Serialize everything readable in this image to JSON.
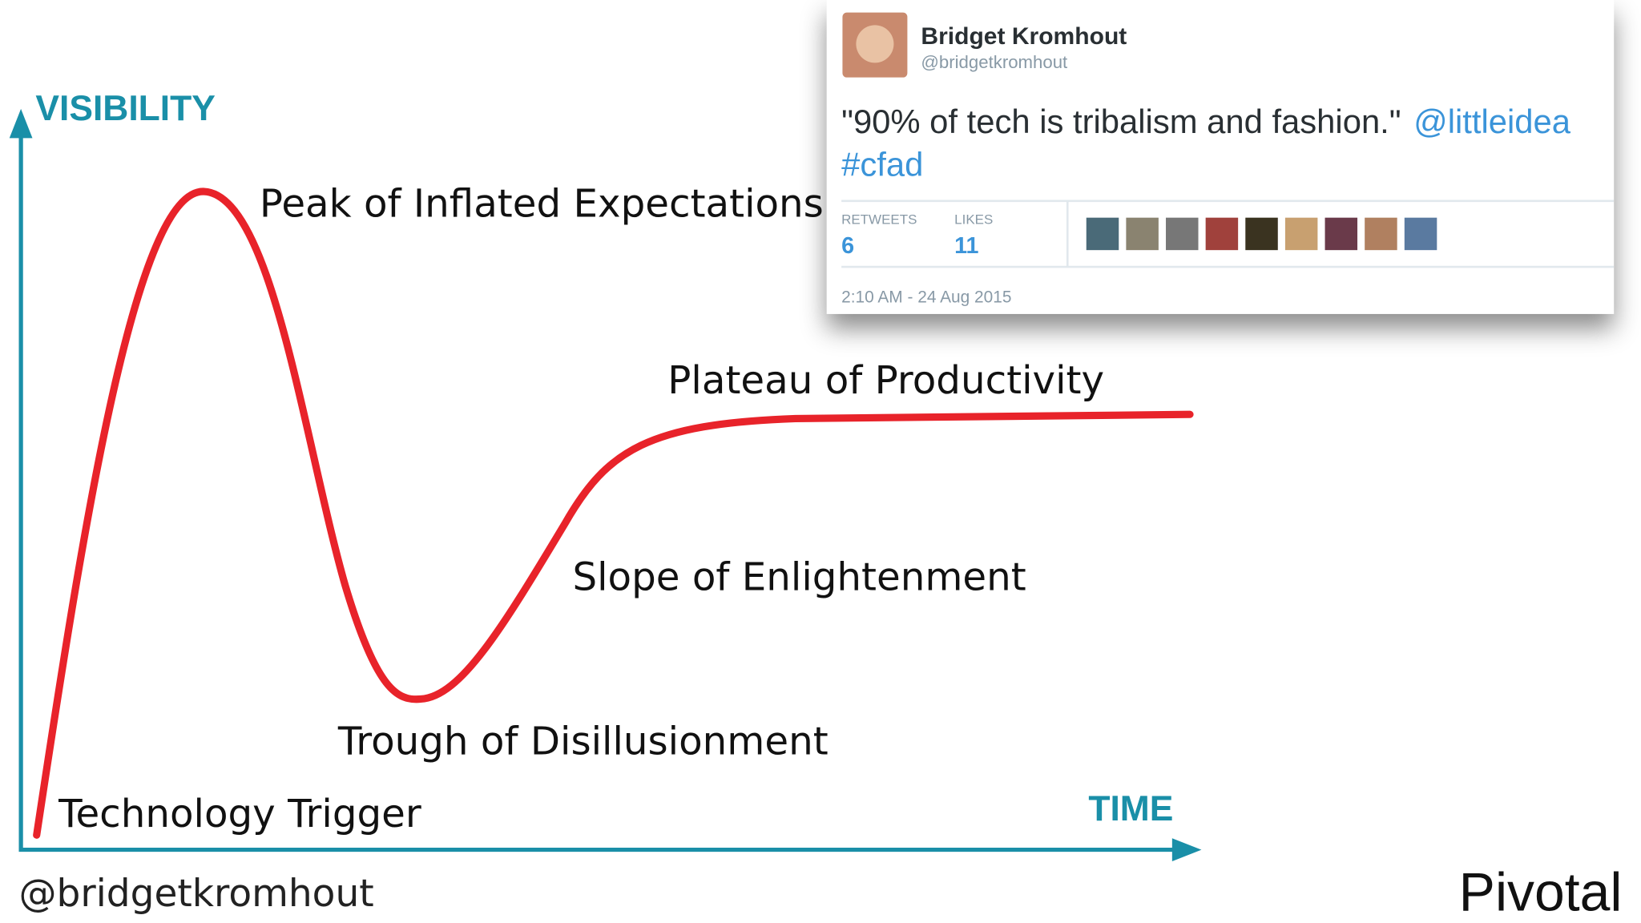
{
  "diagram": {
    "y_axis_label": "VISIBILITY",
    "x_axis_label": "TIME",
    "phases": [
      "Technology Trigger",
      "Peak of Inflated Expectations",
      "Trough of Disillusionment",
      "Slope of Enlightenment",
      "Plateau of Productivity"
    ]
  },
  "tweet": {
    "name": "Bridget Kromhout",
    "handle": "@bridgetkromhout",
    "text": "\"90% of tech is tribalism and fashion.\"",
    "mention": "@littleidea",
    "hashtag": "#cfad",
    "retweets_label": "RETWEETS",
    "retweets": "6",
    "likes_label": "LIKES",
    "likes": "11",
    "timestamp": "2:10 AM - 24 Aug 2015"
  },
  "footer": {
    "handle": "@bridgetkromhout",
    "logo": "Pivotal"
  }
}
